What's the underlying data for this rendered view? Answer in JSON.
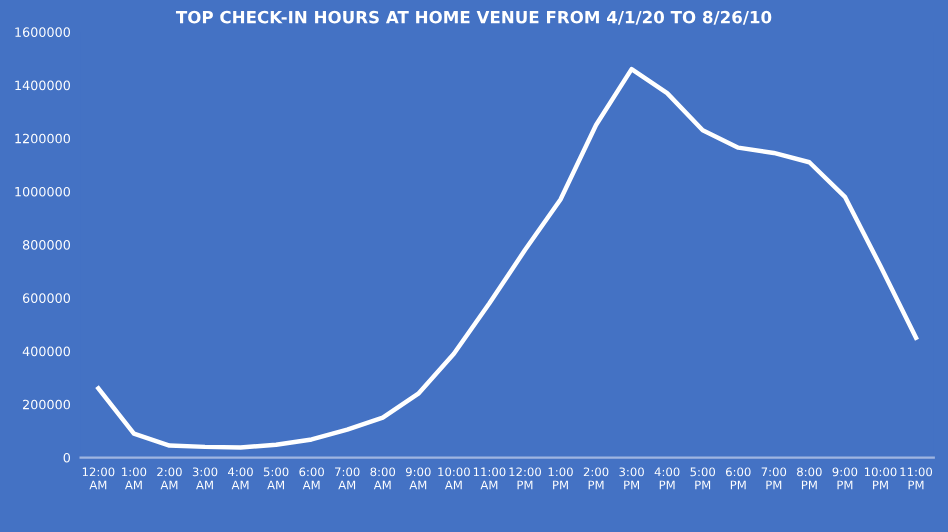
{
  "chart_data": {
    "type": "line",
    "title": "TOP CHECK-IN HOURS AT HOME VENUE FROM 4/1/20 TO 8/26/10",
    "categories": [
      "12:00\nAM",
      "1:00\nAM",
      "2:00\nAM",
      "3:00\nAM",
      "4:00\nAM",
      "5:00\nAM",
      "6:00\nAM",
      "7:00\nAM",
      "8:00\nAM",
      "9:00\nAM",
      "10:00\nAM",
      "11:00\nAM",
      "12:00\nPM",
      "1:00\nPM",
      "2:00\nPM",
      "3:00\nPM",
      "4:00\nPM",
      "5:00\nPM",
      "6:00\nPM",
      "7:00\nPM",
      "8:00\nPM",
      "9:00\nPM",
      "10:00\nPM",
      "11:00\nPM"
    ],
    "series": [
      {
        "color": "#ffffff",
        "values": [
          260000,
          90000,
          45000,
          40000,
          38000,
          48000,
          68000,
          105000,
          150000,
          240000,
          390000,
          580000,
          780000,
          970000,
          1250000,
          1460000,
          1370000,
          1230000,
          1165000,
          1145000,
          1110000,
          980000,
          720000,
          450000
        ]
      }
    ],
    "ylim": [
      0,
      1600000
    ],
    "yticks": [
      0,
      200000,
      400000,
      600000,
      800000,
      1000000,
      1200000,
      1400000,
      1600000
    ],
    "grid": false,
    "legend": false,
    "marker": "none",
    "line_style": "solid"
  }
}
